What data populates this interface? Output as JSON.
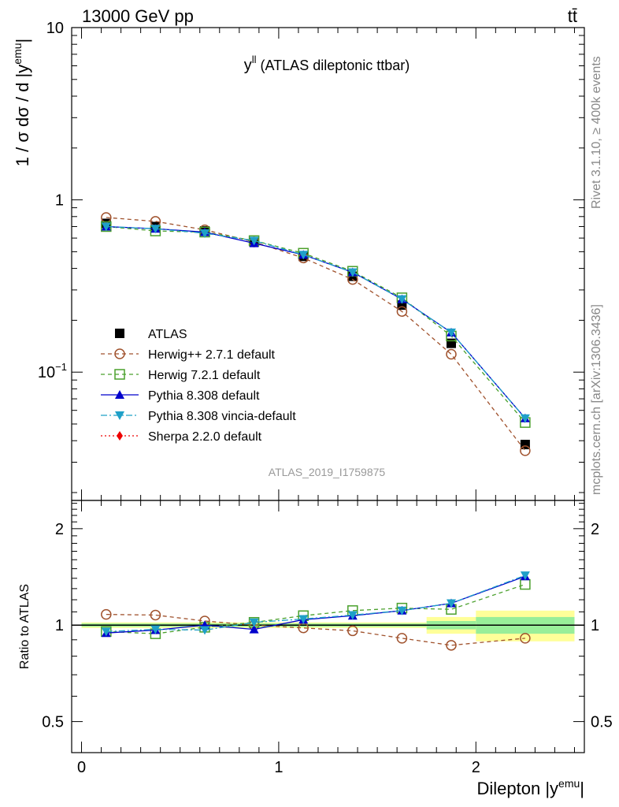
{
  "header": {
    "energy": "13000 GeV pp",
    "process": "tt̄"
  },
  "side": {
    "rivet": "Rivet 3.1.10, ≥ 400k events",
    "mcplots": "mcplots.cern.ch [arXiv:1306.3436]"
  },
  "chart_data": [
    {
      "type": "scatter",
      "panel": "main",
      "title_main": "y",
      "title_sup": "ll",
      "title_rest": " (ATLAS dileptonic ttbar)",
      "watermark": "ATLAS_2019_I1759875",
      "ylabel": "1 / σ  dσ / d |y",
      "ylabel_sup": "emu",
      "ylabel_end": "|",
      "yscale": "log",
      "ylim": [
        0.018,
        10
      ],
      "xlim": [
        -0.05,
        2.55
      ],
      "ytick_labels": [
        {
          "value": 10,
          "label": "10"
        },
        {
          "value": 1,
          "label": "1"
        },
        {
          "value": 0.1,
          "label": "10",
          "sup": "−1"
        }
      ],
      "x": [
        0.125,
        0.375,
        0.625,
        0.875,
        1.125,
        1.375,
        1.625,
        1.875,
        2.25
      ],
      "series": [
        {
          "name": "ATLAS",
          "color": "#000000",
          "marker": "square-filled",
          "line": "none",
          "values": [
            0.73,
            0.7,
            0.66,
            0.57,
            0.47,
            0.36,
            0.245,
            0.147,
            0.038
          ]
        },
        {
          "name": "Herwig++ 2.7.1 default",
          "color": "#a0522d",
          "marker": "circle-open",
          "line": "dashed",
          "values": [
            0.79,
            0.75,
            0.67,
            0.57,
            0.46,
            0.345,
            0.225,
            0.127,
            0.035
          ]
        },
        {
          "name": "Herwig 7.2.1 default",
          "color": "#4aa02c",
          "marker": "square-open",
          "line": "dashed",
          "values": [
            0.7,
            0.66,
            0.65,
            0.58,
            0.49,
            0.385,
            0.27,
            0.162,
            0.051
          ]
        },
        {
          "name": "Pythia 8.308 default",
          "color": "#0000cc",
          "marker": "triangle-up",
          "line": "solid",
          "values": [
            0.7,
            0.68,
            0.65,
            0.56,
            0.48,
            0.38,
            0.265,
            0.17,
            0.054
          ]
        },
        {
          "name": "Pythia 8.308 vincia-default",
          "color": "#1fa0c8",
          "marker": "triangle-down",
          "line": "dashdot",
          "values": [
            0.7,
            0.68,
            0.64,
            0.58,
            0.48,
            0.38,
            0.265,
            0.17,
            0.054
          ]
        },
        {
          "name": "Sherpa 2.2.0 default",
          "color": "#ee0000",
          "marker": "diamond",
          "line": "dotted",
          "values": []
        }
      ]
    },
    {
      "type": "scatter",
      "panel": "ratio",
      "ylabel": "Ratio to ATLAS",
      "xlabel": "Dilepton |y",
      "xlabel_sup": "emu",
      "xlabel_end": "|",
      "yscale": "log",
      "ylim": [
        0.4,
        2.45
      ],
      "xlim": [
        -0.05,
        2.55
      ],
      "ytick_labels": [
        {
          "value": 2,
          "label": "2"
        },
        {
          "value": 1,
          "label": "1"
        },
        {
          "value": 0.5,
          "label": "0.5"
        }
      ],
      "xtick_labels": [
        {
          "value": 0,
          "label": "0"
        },
        {
          "value": 1,
          "label": "1"
        },
        {
          "value": 2,
          "label": "2"
        }
      ],
      "x": [
        0.125,
        0.375,
        0.625,
        0.875,
        1.125,
        1.375,
        1.625,
        1.875,
        2.25
      ],
      "uncertainty_bins": [
        {
          "x0": 0.0,
          "x1": 1.75,
          "inner": 0.012,
          "outer": 0.02
        },
        {
          "x0": 1.75,
          "x1": 2.0,
          "inner": 0.03,
          "outer": 0.06
        },
        {
          "x0": 2.0,
          "x1": 2.5,
          "inner": 0.06,
          "outer": 0.11
        }
      ],
      "series": [
        {
          "name": "Herwig++ 2.7.1 default",
          "color": "#a0522d",
          "marker": "circle-open",
          "line": "dashed",
          "values": [
            1.08,
            1.075,
            1.03,
            1.0,
            0.98,
            0.96,
            0.91,
            0.865,
            0.91
          ]
        },
        {
          "name": "Herwig 7.2.1 default",
          "color": "#4aa02c",
          "marker": "square-open",
          "line": "dashed",
          "values": [
            0.955,
            0.94,
            0.985,
            1.02,
            1.07,
            1.11,
            1.13,
            1.12,
            1.34
          ]
        },
        {
          "name": "Pythia 8.308 default",
          "color": "#0000cc",
          "marker": "triangle-up",
          "line": "solid",
          "values": [
            0.945,
            0.965,
            1.0,
            0.97,
            1.04,
            1.07,
            1.11,
            1.17,
            1.42
          ]
        },
        {
          "name": "Pythia 8.308 vincia-default",
          "color": "#1fa0c8",
          "marker": "triangle-down",
          "line": "dashdot",
          "values": [
            0.955,
            0.97,
            0.965,
            1.02,
            1.045,
            1.075,
            1.11,
            1.17,
            1.43
          ]
        }
      ]
    }
  ]
}
